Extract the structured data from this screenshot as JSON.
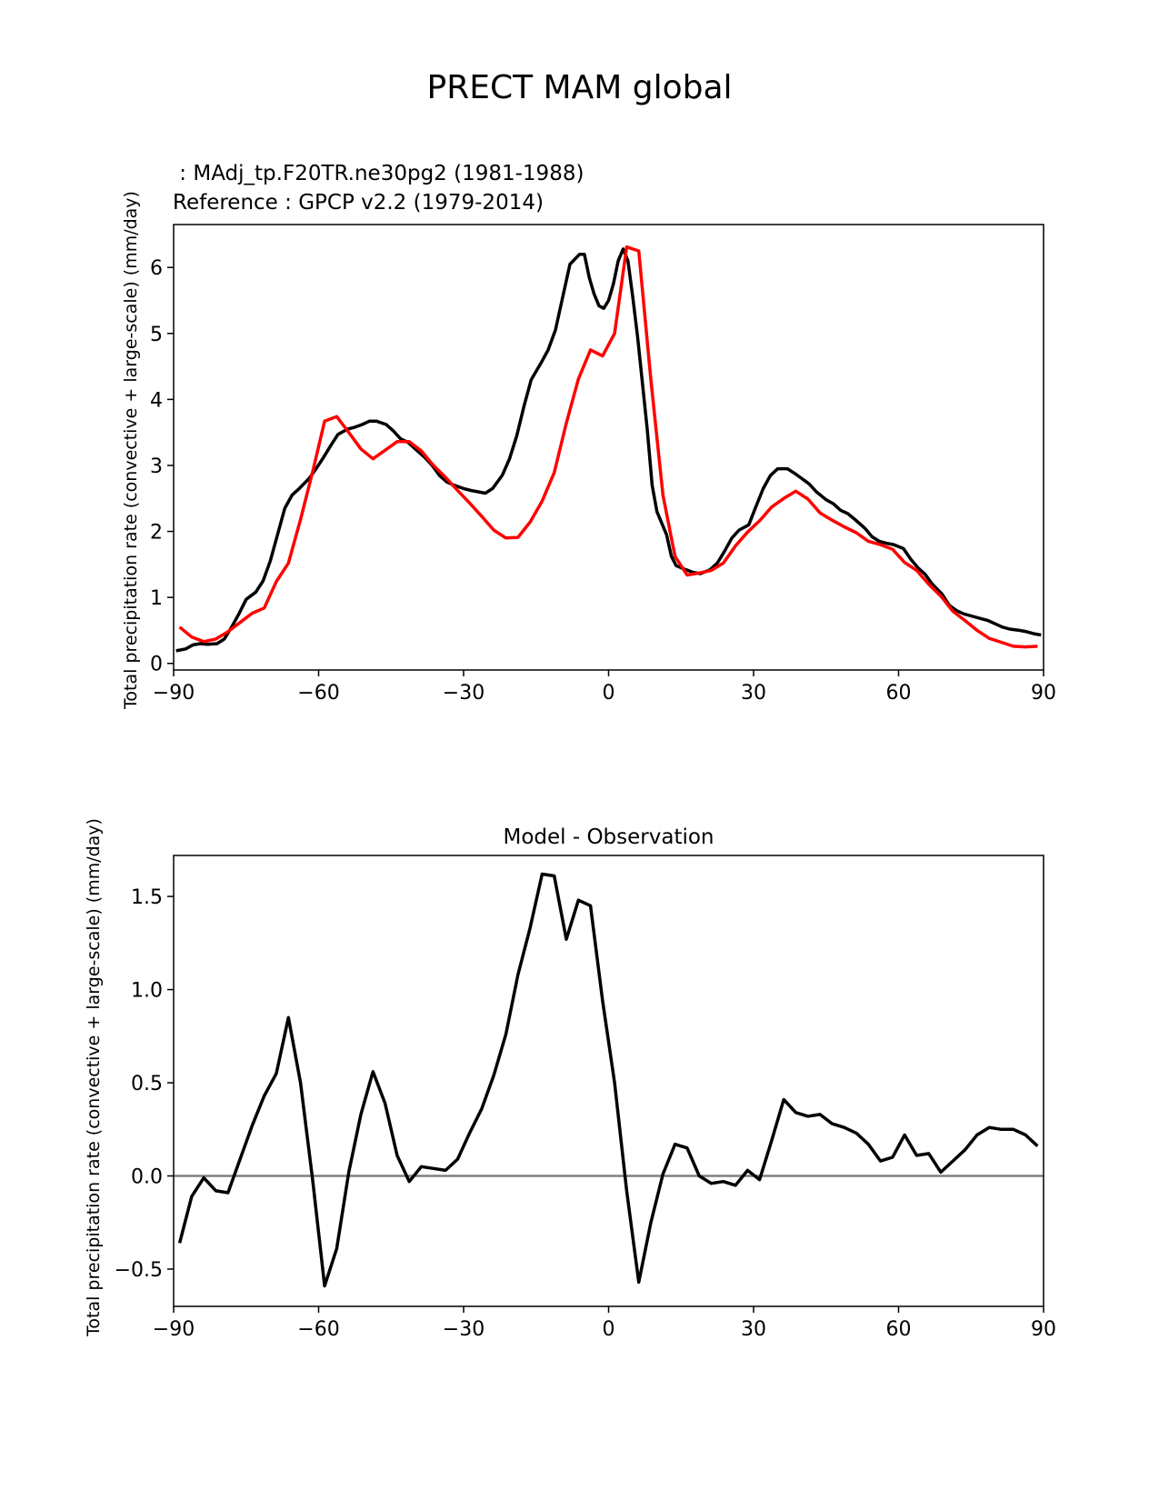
{
  "title": "PRECT MAM global",
  "legend": {
    "test_label": " : MAdj_tp.F20TR.ne30pg2 (1981-1988)",
    "ref_label": "Reference : GPCP v2.2 (1979-2014)",
    "test_color": "#000000",
    "ref_color": "#ff0000"
  },
  "chart_data": [
    {
      "type": "line",
      "title": "",
      "xlabel": "",
      "ylabel": "Total precipitation rate (convective + large-scale) (mm/day)",
      "xlim": [
        -90,
        90
      ],
      "ylim": [
        -0.1,
        6.65
      ],
      "xticks": [
        -90,
        -60,
        -30,
        0,
        30,
        60,
        90
      ],
      "xtick_labels": [
        "−90",
        "−60",
        "−30",
        "0",
        "30",
        "60",
        "90"
      ],
      "yticks": [
        0,
        1,
        2,
        3,
        4,
        5,
        6
      ],
      "ytick_labels": [
        "0",
        "1",
        "2",
        "3",
        "4",
        "5",
        "6"
      ],
      "series": [
        {
          "name": "MAdj_tp.F20TR.ne30pg2 (1981-1988)",
          "color": "#000000",
          "x": [
            -89.5,
            -87.5,
            -86,
            -84.5,
            -83,
            -81,
            -79.5,
            -78,
            -76.5,
            -75,
            -73,
            -71.5,
            -70,
            -68.5,
            -67,
            -65.5,
            -64,
            -62,
            -60.5,
            -59,
            -57.5,
            -56,
            -54,
            -52.5,
            -51,
            -49.5,
            -48,
            -46,
            -44.5,
            -43,
            -41.5,
            -40,
            -38,
            -36.5,
            -35,
            -33.5,
            -32,
            -30,
            -28.5,
            -27,
            -25.5,
            -24,
            -22,
            -20.5,
            -19,
            -17.5,
            -16,
            -14,
            -12.5,
            -11,
            -9.5,
            -8,
            -6,
            -5,
            -4,
            -3,
            -2,
            -1,
            0,
            1,
            2,
            3,
            4,
            5,
            6,
            7,
            8,
            9,
            10,
            12,
            13,
            14,
            16,
            17.5,
            19,
            21,
            22.5,
            24,
            25.5,
            27,
            29,
            30.5,
            32,
            33.5,
            35,
            37,
            38.5,
            40,
            41.5,
            43,
            45,
            46.5,
            48,
            49.5,
            51,
            53,
            54.5,
            56,
            57.5,
            59,
            61,
            62.5,
            64,
            65.5,
            67,
            69,
            70.5,
            72,
            73.5,
            75,
            77,
            78.5,
            80,
            81.5,
            83,
            85,
            86.5,
            88,
            89.5
          ],
          "values": [
            0.19,
            0.22,
            0.28,
            0.3,
            0.29,
            0.3,
            0.37,
            0.55,
            0.75,
            0.97,
            1.08,
            1.25,
            1.55,
            1.95,
            2.35,
            2.55,
            2.65,
            2.8,
            2.95,
            3.12,
            3.3,
            3.47,
            3.55,
            3.58,
            3.62,
            3.67,
            3.67,
            3.62,
            3.52,
            3.4,
            3.35,
            3.25,
            3.12,
            3.0,
            2.85,
            2.75,
            2.7,
            2.65,
            2.62,
            2.6,
            2.58,
            2.65,
            2.85,
            3.1,
            3.45,
            3.9,
            4.3,
            4.55,
            4.75,
            5.05,
            5.55,
            6.05,
            6.2,
            6.2,
            5.85,
            5.6,
            5.42,
            5.38,
            5.5,
            5.75,
            6.1,
            6.28,
            6.1,
            5.55,
            4.95,
            4.25,
            3.55,
            2.7,
            2.3,
            1.95,
            1.62,
            1.48,
            1.42,
            1.38,
            1.36,
            1.42,
            1.52,
            1.7,
            1.9,
            2.02,
            2.1,
            2.38,
            2.65,
            2.85,
            2.95,
            2.95,
            2.88,
            2.8,
            2.72,
            2.6,
            2.48,
            2.42,
            2.32,
            2.27,
            2.18,
            2.05,
            1.92,
            1.85,
            1.82,
            1.8,
            1.74,
            1.58,
            1.45,
            1.35,
            1.2,
            1.05,
            0.88,
            0.8,
            0.75,
            0.72,
            0.68,
            0.65,
            0.6,
            0.55,
            0.52,
            0.5,
            0.48,
            0.45,
            0.43
          ]
        },
        {
          "name": "GPCP v2.2 (1979-2014)",
          "color": "#ff0000",
          "x": [
            -88.75,
            -86.25,
            -83.75,
            -81.25,
            -78.75,
            -76.25,
            -73.75,
            -71.25,
            -68.75,
            -66.25,
            -63.75,
            -61.25,
            -58.75,
            -56.25,
            -53.75,
            -51.25,
            -48.75,
            -46.25,
            -43.75,
            -41.25,
            -38.75,
            -36.25,
            -33.75,
            -31.25,
            -28.75,
            -26.25,
            -23.75,
            -21.25,
            -18.75,
            -16.25,
            -13.75,
            -11.25,
            -8.75,
            -6.25,
            -3.75,
            -1.25,
            1.25,
            3.75,
            6.25,
            8.75,
            11.25,
            13.75,
            16.25,
            18.75,
            21.25,
            23.75,
            26.25,
            28.75,
            31.25,
            33.75,
            36.25,
            38.75,
            41.25,
            43.75,
            46.25,
            48.75,
            51.25,
            53.75,
            56.25,
            58.75,
            61.25,
            63.75,
            66.25,
            68.75,
            71.25,
            73.75,
            76.25,
            78.75,
            81.25,
            83.75,
            86.25,
            88.75
          ],
          "values": [
            0.55,
            0.4,
            0.33,
            0.37,
            0.48,
            0.62,
            0.76,
            0.84,
            1.24,
            1.52,
            2.18,
            2.9,
            3.67,
            3.74,
            3.5,
            3.25,
            3.1,
            3.23,
            3.36,
            3.36,
            3.22,
            3.0,
            2.82,
            2.62,
            2.43,
            2.23,
            2.02,
            1.9,
            1.91,
            2.14,
            2.46,
            2.89,
            3.64,
            4.31,
            4.75,
            4.66,
            5.0,
            6.31,
            6.25,
            4.3,
            2.55,
            1.62,
            1.34,
            1.37,
            1.41,
            1.52,
            1.78,
            1.99,
            2.16,
            2.37,
            2.5,
            2.61,
            2.49,
            2.28,
            2.17,
            2.07,
            1.98,
            1.85,
            1.8,
            1.73,
            1.53,
            1.41,
            1.2,
            1.02,
            0.79,
            0.65,
            0.5,
            0.38,
            0.32,
            0.26,
            0.25,
            0.26
          ]
        }
      ]
    },
    {
      "type": "line",
      "title": "Model - Observation",
      "xlabel": "",
      "ylabel": "Total precipitation rate (convective + large-scale) (mm/day)",
      "xlim": [
        -90,
        90
      ],
      "ylim": [
        -0.7,
        1.72
      ],
      "xticks": [
        -90,
        -60,
        -30,
        0,
        30,
        60,
        90
      ],
      "xtick_labels": [
        "−90",
        "−60",
        "−30",
        "0",
        "30",
        "60",
        "90"
      ],
      "yticks": [
        -0.5,
        0.0,
        0.5,
        1.0,
        1.5
      ],
      "ytick_labels": [
        "−0.5",
        "0.0",
        "0.5",
        "1.0",
        "1.5"
      ],
      "zero_line_color": "#808080",
      "series": [
        {
          "name": "Model - Observation",
          "color": "#000000",
          "x": [
            -88.75,
            -86.25,
            -83.75,
            -81.25,
            -78.75,
            -76.25,
            -73.75,
            -71.25,
            -68.75,
            -66.25,
            -63.75,
            -61.25,
            -58.75,
            -56.25,
            -53.75,
            -51.25,
            -48.75,
            -46.25,
            -43.75,
            -41.25,
            -38.75,
            -36.25,
            -33.75,
            -31.25,
            -28.75,
            -26.25,
            -23.75,
            -21.25,
            -18.75,
            -16.25,
            -13.75,
            -11.25,
            -8.75,
            -6.25,
            -3.75,
            -1.25,
            1.25,
            3.75,
            6.25,
            8.75,
            11.25,
            13.75,
            16.25,
            18.75,
            21.25,
            23.75,
            26.25,
            28.75,
            31.25,
            33.75,
            36.25,
            38.75,
            41.25,
            43.75,
            46.25,
            48.75,
            51.25,
            53.75,
            56.25,
            58.75,
            61.25,
            63.75,
            66.25,
            68.75,
            71.25,
            73.75,
            76.25,
            78.75,
            81.25,
            83.75,
            86.25,
            88.75
          ],
          "values": [
            -0.36,
            -0.11,
            -0.01,
            -0.08,
            -0.09,
            0.09,
            0.27,
            0.43,
            0.55,
            0.85,
            0.5,
            -0.02,
            -0.59,
            -0.39,
            0.02,
            0.33,
            0.56,
            0.39,
            0.11,
            -0.03,
            0.05,
            0.04,
            0.03,
            0.09,
            0.23,
            0.36,
            0.54,
            0.76,
            1.08,
            1.33,
            1.62,
            1.61,
            1.27,
            1.48,
            1.45,
            0.94,
            0.5,
            -0.08,
            -0.57,
            -0.25,
            0.01,
            0.17,
            0.15,
            0.0,
            -0.04,
            -0.03,
            -0.05,
            0.03,
            -0.02,
            0.19,
            0.41,
            0.34,
            0.32,
            0.33,
            0.28,
            0.26,
            0.23,
            0.17,
            0.08,
            0.1,
            0.22,
            0.11,
            0.12,
            0.02,
            0.08,
            0.14,
            0.22,
            0.26,
            0.25,
            0.25,
            0.22,
            0.16
          ]
        }
      ]
    }
  ]
}
